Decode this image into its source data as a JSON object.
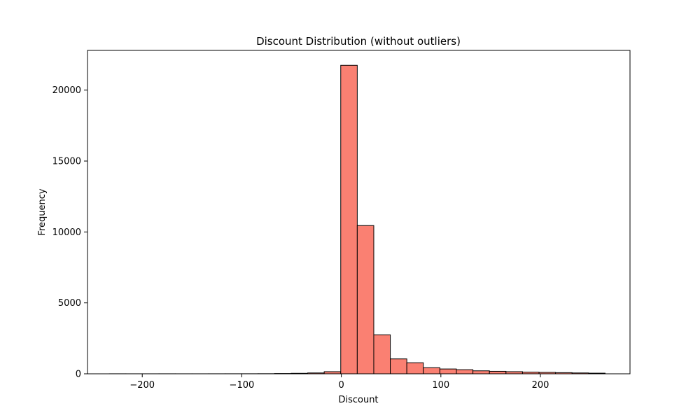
{
  "chart_data": {
    "type": "bar",
    "subtype": "histogram",
    "title": "Discount Distribution (without outliers)",
    "xlabel": "Discount",
    "ylabel": "Frequency",
    "xlim": [
      -255,
      290
    ],
    "ylim": [
      0,
      22800
    ],
    "xticks": [
      -200,
      -100,
      0,
      100,
      200
    ],
    "yticks": [
      0,
      5000,
      10000,
      15000,
      20000
    ],
    "xtick_labels": [
      "−200",
      "−100",
      "0",
      "100",
      "200"
    ],
    "ytick_labels": [
      "0",
      "5000",
      "10000",
      "15000",
      "20000"
    ],
    "bin_edges": [
      -233,
      -216.4,
      -199.8,
      -183.2,
      -166.6,
      -150,
      -133.4,
      -116.8,
      -100.2,
      -83.6,
      -67,
      -50.4,
      -33.8,
      -17.2,
      -0.6,
      16,
      32.6,
      49.2,
      65.8,
      82.4,
      99,
      115.6,
      132.2,
      148.8,
      165.4,
      182,
      198.6,
      215.2,
      231.8,
      248.4,
      265
    ],
    "values": [
      3,
      2,
      2,
      3,
      2,
      2,
      3,
      4,
      5,
      8,
      20,
      35,
      60,
      150,
      21750,
      10450,
      2750,
      1050,
      780,
      430,
      340,
      290,
      210,
      175,
      150,
      120,
      100,
      80,
      60,
      45
    ],
    "bar_color": "#fa8072",
    "edge_color": "#000000",
    "grid": false
  }
}
